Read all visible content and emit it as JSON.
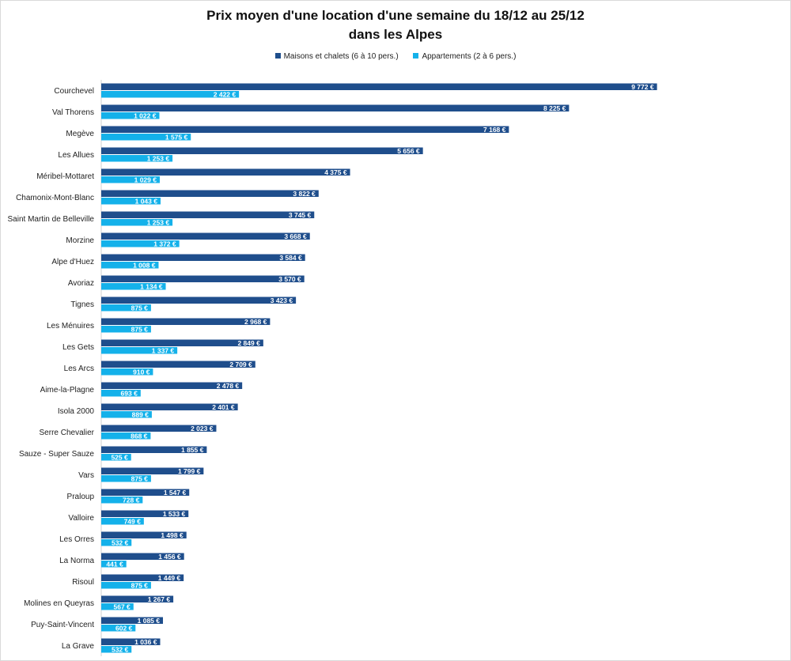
{
  "chart_data": {
    "type": "bar",
    "orientation": "horizontal",
    "title": "Prix moyen d'une location d'une semaine du 18/12 au 25/12",
    "subtitle": "dans les Alpes",
    "legend_position": "top",
    "grid": false,
    "xlabel": "",
    "ylabel": "",
    "xlim": [
      0,
      11000
    ],
    "categories": [
      "Courchevel",
      "Val Thorens",
      "Megève",
      "Les Allues",
      "Méribel-Mottaret",
      "Chamonix-Mont-Blanc",
      "Saint Martin de Belleville",
      "Morzine",
      "Alpe d'Huez",
      "Avoriaz",
      "Tignes",
      "Les Ménuires",
      "Les Gets",
      "Les Arcs",
      "Aime-la-Plagne",
      "Isola 2000",
      "Serre Chevalier",
      "Sauze - Super Sauze",
      "Vars",
      "Praloup",
      "Valloire",
      "Les Orres",
      "La Norma",
      "Risoul",
      "Molines en Queyras",
      "Puy-Saint-Vincent",
      "La Grave"
    ],
    "series": [
      {
        "name": "Maisons et chalets (6 à 10 pers.)",
        "color": "#1f4e8c",
        "values": [
          9772,
          8225,
          7168,
          5656,
          4375,
          3822,
          3745,
          3668,
          3584,
          3570,
          3423,
          2968,
          2849,
          2709,
          2478,
          2401,
          2023,
          1855,
          1799,
          1547,
          1533,
          1498,
          1456,
          1449,
          1267,
          1085,
          1036
        ],
        "labels": [
          "9 772 €",
          "8 225 €",
          "7 168 €",
          "5 656 €",
          "4 375 €",
          "3 822 €",
          "3 745 €",
          "3 668 €",
          "3 584 €",
          "3 570 €",
          "3 423 €",
          "2 968 €",
          "2 849 €",
          "2 709 €",
          "2 478 €",
          "2 401 €",
          "2 023 €",
          "1 855 €",
          "1 799 €",
          "1 547 €",
          "1 533 €",
          "1 498 €",
          "1 456 €",
          "1 449 €",
          "1 267 €",
          "1 085 €",
          "1 036 €"
        ]
      },
      {
        "name": "Appartements (2 à 6 pers.)",
        "color": "#14b1ea",
        "values": [
          2422,
          1022,
          1575,
          1253,
          1029,
          1043,
          1253,
          1372,
          1008,
          1134,
          875,
          875,
          1337,
          910,
          693,
          889,
          868,
          525,
          875,
          728,
          749,
          532,
          441,
          875,
          567,
          602,
          532
        ],
        "labels": [
          "2 422 €",
          "1 022 €",
          "1 575 €",
          "1 253 €",
          "1 029 €",
          "1 043 €",
          "1 253 €",
          "1 372 €",
          "1 008 €",
          "1 134 €",
          "875 €",
          "875 €",
          "1 337 €",
          "910 €",
          "693 €",
          "889 €",
          "868 €",
          "525 €",
          "875 €",
          "728 €",
          "749 €",
          "532 €",
          "441 €",
          "875 €",
          "567 €",
          "602 €",
          "532 €"
        ]
      }
    ]
  }
}
